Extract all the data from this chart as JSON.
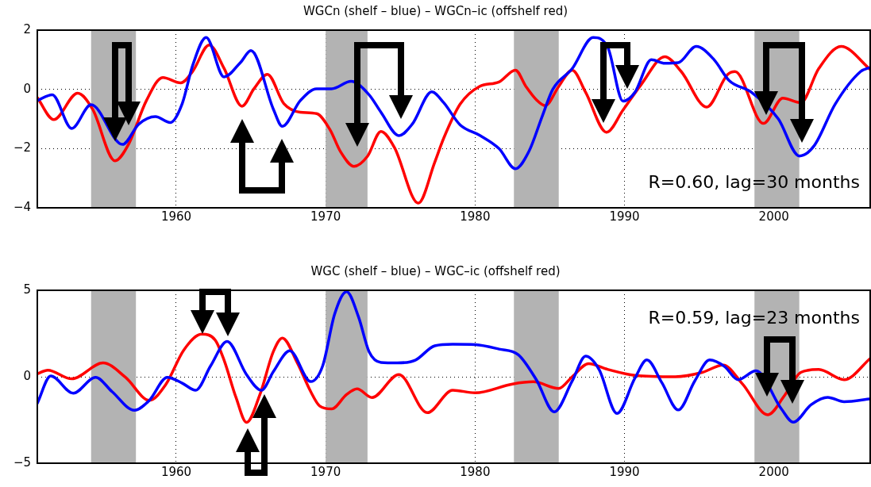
{
  "chart_data": [
    {
      "type": "line",
      "title": "WGCn (shelf – blue) – WGCn–ic (offshelf red)",
      "xlim": [
        1950.7,
        2006.5
      ],
      "ylim": [
        -4,
        2
      ],
      "xticks": [
        1960,
        1970,
        1980,
        1990,
        2000
      ],
      "yticks": [
        {
          "value": -4,
          "label": "−4"
        },
        {
          "value": -2,
          "label": "−2"
        },
        0,
        2
      ],
      "grid": true,
      "bands": [
        {
          "axis": "x",
          "from": 1954.3,
          "to": 1957.3,
          "color": "#b3b3b3"
        },
        {
          "axis": "x",
          "from": 1970.0,
          "to": 1972.8,
          "color": "#b3b3b3"
        },
        {
          "axis": "x",
          "from": 1982.6,
          "to": 1985.6,
          "color": "#b3b3b3"
        },
        {
          "axis": "x",
          "from": 1998.7,
          "to": 2001.7,
          "color": "#b3b3b3"
        }
      ],
      "annotations": [
        "R=0.60, lag=30 months"
      ],
      "series": [
        {
          "color": "#0000ff",
          "x": [
            1950.7,
            1951.7,
            1953.0,
            1954.3,
            1956.4,
            1957.5,
            1958.6,
            1959.6,
            1960.4,
            1961.1,
            1962.0,
            1963.2,
            1964.3,
            1965.0,
            1966.5,
            1967.1,
            1968.3,
            1969.4,
            1970.4,
            1971.7,
            1972.9,
            1973.7,
            1974.9,
            1975.8,
            1977.1,
            1977.9,
            1979.0,
            1980.3,
            1981.6,
            1982.7,
            1983.6,
            1984.5,
            1985.2,
            1986.5,
            1987.9,
            1988.9,
            1989.9,
            1990.7,
            1991.8,
            1992.7,
            1993.6,
            1994.8,
            1996.0,
            1997.0,
            1998.5,
            2000.3,
            2001.7,
            2002.7,
            2004.1,
            2005.8,
            2006.5
          ],
          "values": [
            -0.38,
            -0.18,
            -1.32,
            -0.52,
            -1.86,
            -1.17,
            -0.92,
            -1.12,
            -0.48,
            0.81,
            1.75,
            0.42,
            0.91,
            1.31,
            -0.67,
            -1.25,
            -0.38,
            0.02,
            0.02,
            0.27,
            -0.18,
            -0.77,
            -1.56,
            -1.17,
            -0.08,
            -0.45,
            -1.2,
            -1.55,
            -2.0,
            -2.68,
            -2.1,
            -0.9,
            0,
            0.7,
            1.75,
            1.4,
            -0.4,
            -0.1,
            1.0,
            0.88,
            0.9,
            1.45,
            1.0,
            0.3,
            -0.1,
            -1.0,
            -2.25,
            -1.9,
            -0.5,
            0.6,
            0.75
          ]
        },
        {
          "color": "#ff0000",
          "x": [
            1950.7,
            1951.8,
            1953.4,
            1954.4,
            1955.9,
            1956.8,
            1958.0,
            1959.1,
            1960.3,
            1961.1,
            1962.2,
            1963.2,
            1964.4,
            1965.2,
            1966.1,
            1967.2,
            1968.3,
            1969.4,
            1970.3,
            1971.0,
            1971.9,
            1972.8,
            1973.7,
            1974.6,
            1976.2,
            1977.3,
            1977.9,
            1979.0,
            1980.3,
            1981.6,
            1982.7,
            1983.4,
            1984.1,
            1984.7,
            1985.6,
            1986.5,
            1987.4,
            1988.8,
            1989.9,
            1991.1,
            1992.7,
            1993.8,
            1995.5,
            1996.9,
            1997.4,
            1999.3,
            2000.6,
            2001.8,
            2003.0,
            2004.5,
            2006.5
          ],
          "values": [
            -0.28,
            -1.02,
            -0.13,
            -0.67,
            -2.41,
            -1.86,
            -0.38,
            0.4,
            0.22,
            0.61,
            1.5,
            0.71,
            -0.57,
            0.02,
            0.51,
            -0.48,
            -0.77,
            -0.82,
            -1.37,
            -2.11,
            -2.6,
            -2.26,
            -1.42,
            -1.96,
            -3.84,
            -2.46,
            -1.65,
            -0.5,
            0.1,
            0.25,
            0.65,
            0.1,
            -0.35,
            -0.55,
            0.1,
            0.65,
            -0.1,
            -1.45,
            -0.7,
            0.15,
            1.1,
            0.6,
            -0.6,
            0.5,
            0.6,
            -1.15,
            -0.3,
            -0.45,
            0.7,
            1.45,
            0.65
          ]
        }
      ]
    },
    {
      "type": "line",
      "title": "WGC (shelf – blue) – WGC–ic (offshelf red)",
      "xlim": [
        1950.7,
        2006.5
      ],
      "ylim": [
        -5,
        5
      ],
      "xticks": [
        1960,
        1970,
        1980,
        1990,
        2000
      ],
      "yticks": [
        {
          "value": -5,
          "label": "−5"
        },
        0,
        5
      ],
      "grid": true,
      "bands": [
        {
          "axis": "x",
          "from": 1954.3,
          "to": 1957.3,
          "color": "#b3b3b3"
        },
        {
          "axis": "x",
          "from": 1970.0,
          "to": 1972.8,
          "color": "#b3b3b3"
        },
        {
          "axis": "x",
          "from": 1982.6,
          "to": 1985.6,
          "color": "#b3b3b3"
        },
        {
          "axis": "x",
          "from": 1998.7,
          "to": 2001.7,
          "color": "#b3b3b3"
        }
      ],
      "annotations": [
        "R=0.59, lag=23 months"
      ],
      "series": [
        {
          "color": "#0000ff",
          "x": [
            1950.7,
            1951.6,
            1953.1,
            1954.6,
            1955.7,
            1957.2,
            1958.2,
            1959.4,
            1960.4,
            1961.3,
            1962.3,
            1963.4,
            1964.7,
            1965.7,
            1966.5,
            1967.6,
            1969.0,
            1969.8,
            1970.6,
            1971.4,
            1972.2,
            1972.9,
            1973.7,
            1974.8,
            1976.0,
            1977.3,
            1978.5,
            1980.0,
            1981.6,
            1982.9,
            1984.1,
            1985.3,
            1986.5,
            1987.4,
            1988.3,
            1989.5,
            1990.7,
            1991.5,
            1992.5,
            1993.6,
            1994.7,
            1995.7,
            1996.7,
            1997.6,
            1998.8,
            2000.5,
            2001.3,
            2002.5,
            2003.6,
            2004.7,
            2006.5
          ],
          "values": [
            -1.53,
            0.05,
            -0.95,
            -0.03,
            -0.86,
            -1.94,
            -1.36,
            -0.03,
            -0.37,
            -0.78,
            0.63,
            2.04,
            0.13,
            -0.78,
            0.3,
            1.5,
            -0.28,
            0.63,
            3.62,
            4.92,
            3.46,
            1.46,
            0.83,
            0.8,
            0.96,
            1.79,
            1.88,
            1.86,
            1.6,
            1.27,
            -0.17,
            -2.03,
            -0.25,
            1.19,
            0.42,
            -2.12,
            -0.08,
            0.97,
            -0.34,
            -1.92,
            -0.25,
            0.97,
            0.59,
            -0.17,
            0.34,
            -1.86,
            -2.63,
            -1.61,
            -1.19,
            -1.44,
            -1.27
          ]
        },
        {
          "color": "#ff0000",
          "x": [
            1950.7,
            1951.4,
            1953.0,
            1955.1,
            1956.6,
            1958.2,
            1959.3,
            1960.5,
            1961.7,
            1962.6,
            1963.2,
            1964.0,
            1964.7,
            1965.6,
            1966.5,
            1967.1,
            1968.1,
            1969.0,
            1969.6,
            1970.4,
            1971.4,
            1972.1,
            1973.1,
            1974.9,
            1976.8,
            1978.5,
            1980.0,
            1982.5,
            1983.9,
            1985.6,
            1986.5,
            1987.6,
            1988.9,
            1990.7,
            1993.4,
            1995.2,
            1996.6,
            1997.9,
            1999.6,
            2000.7,
            2001.8,
            2003.0,
            2004.7,
            2006.5
          ],
          "values": [
            0.17,
            0.38,
            -0.12,
            0.8,
            -0.03,
            -1.36,
            -0.45,
            1.54,
            2.46,
            2.13,
            0.96,
            -1.2,
            -2.64,
            -1.03,
            1.46,
            2.24,
            0.8,
            -0.86,
            -1.69,
            -1.86,
            -1.03,
            -0.7,
            -1.2,
            0.13,
            -2.08,
            -0.78,
            -0.93,
            -0.42,
            -0.29,
            -0.68,
            0,
            0.76,
            0.42,
            0.08,
            0,
            0.25,
            0.68,
            -0.42,
            -2.2,
            -1.1,
            0.25,
            0.42,
            -0.17,
            1.1
          ]
        }
      ]
    }
  ]
}
